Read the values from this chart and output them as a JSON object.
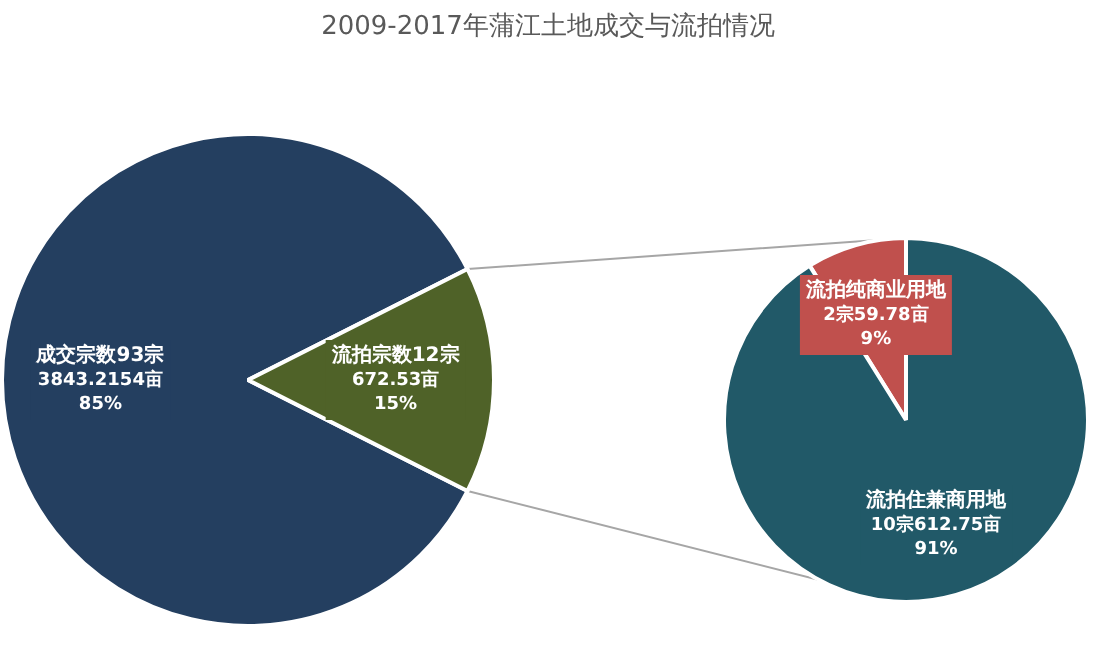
{
  "chart_data": [
    {
      "type": "pie",
      "title": "2009-2017年蒲江土地成交与流拍情况",
      "categories": [
        "成交宗数93宗",
        "流拍宗数12宗"
      ],
      "values": [
        3843.2154,
        672.53
      ],
      "value_labels": [
        "3843.2154亩\n85%",
        "672.53亩\n15%"
      ],
      "colors": [
        "#243f60",
        "#4f6228"
      ],
      "legend": false
    },
    {
      "type": "pie",
      "categories": [
        "流拍纯商业用地",
        "流拍住兼商用地"
      ],
      "values": [
        59.78,
        612.75
      ],
      "value_labels": [
        "2宗59.78亩\n9%",
        "10宗612.75亩\n91%"
      ],
      "colors": [
        "#c0504d",
        "#215968"
      ],
      "legend": false
    }
  ]
}
